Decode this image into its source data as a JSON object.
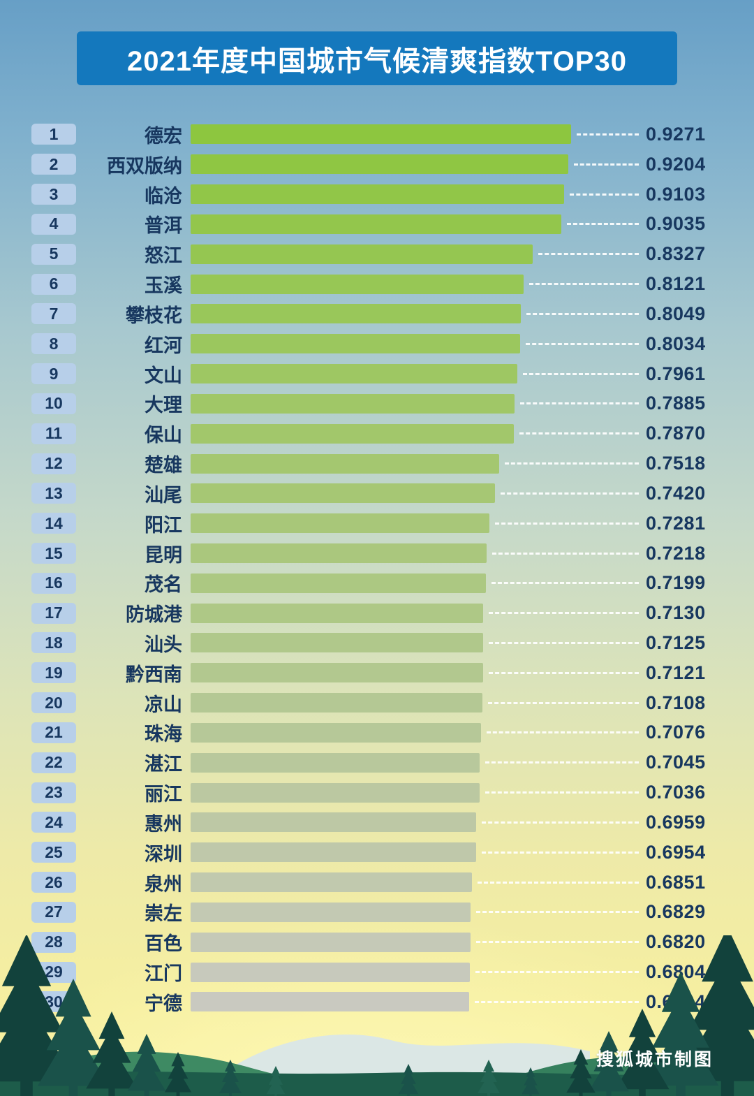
{
  "title": "2021年度中国城市气候清爽指数TOP30",
  "credit": "搜狐城市制图",
  "colors": {
    "title_bg": "#1478bd",
    "rank_bg": "#b7cfe9",
    "text_dark": "#17375f",
    "bar_color_top": "#8dc63f",
    "bar_color_bottom": "#c9c9c0",
    "dash_color": "rgba(255,255,255,0.92)"
  },
  "chart_data": {
    "type": "bar",
    "orientation": "horizontal",
    "title": "2021年度中国城市气候清爽指数TOP30",
    "ranks": [
      1,
      2,
      3,
      4,
      5,
      6,
      7,
      8,
      9,
      10,
      11,
      12,
      13,
      14,
      15,
      16,
      17,
      18,
      19,
      20,
      21,
      22,
      23,
      24,
      25,
      26,
      27,
      28,
      29,
      30
    ],
    "categories": [
      "德宏",
      "西双版纳",
      "临沧",
      "普洱",
      "怒江",
      "玉溪",
      "攀枝花",
      "红河",
      "文山",
      "大理",
      "保山",
      "楚雄",
      "汕尾",
      "阳江",
      "昆明",
      "茂名",
      "防城港",
      "汕头",
      "黔西南",
      "凉山",
      "珠海",
      "湛江",
      "丽江",
      "惠州",
      "深圳",
      "泉州",
      "崇左",
      "百色",
      "江门",
      "宁德"
    ],
    "values": [
      0.9271,
      0.9204,
      0.9103,
      0.9035,
      0.8327,
      0.8121,
      0.8049,
      0.8034,
      0.7961,
      0.7885,
      0.787,
      0.7518,
      0.742,
      0.7281,
      0.7218,
      0.7199,
      0.713,
      0.7125,
      0.7121,
      0.7108,
      0.7076,
      0.7045,
      0.7036,
      0.6959,
      0.6954,
      0.6851,
      0.6829,
      0.682,
      0.6804,
      0.6794
    ],
    "value_decimals": 4,
    "xlim": [
      0,
      0.9271
    ],
    "grid": false,
    "legend": "none",
    "bar_style": "color fades from green (rank 1) to gray (rank 30), dashed white leader lines to value labels"
  }
}
